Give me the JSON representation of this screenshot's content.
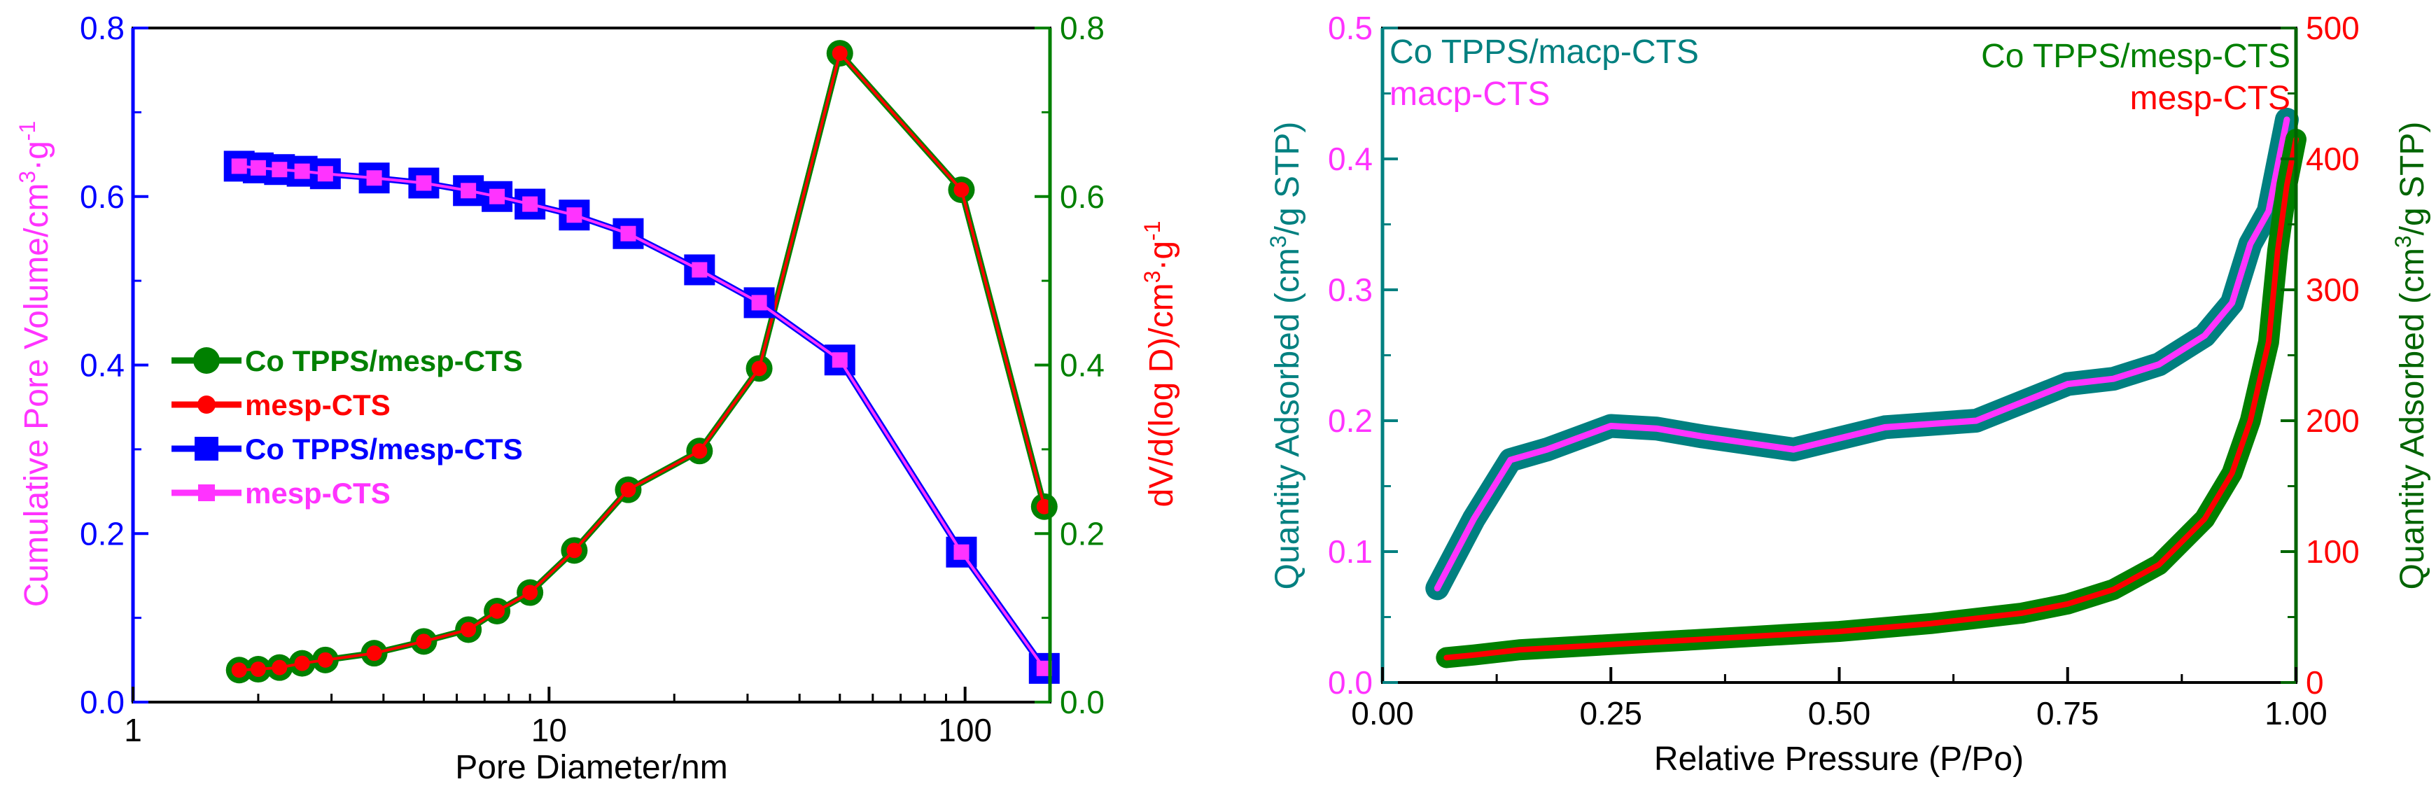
{
  "colors": {
    "green": "#008000",
    "red": "#ff0000",
    "blue": "#0000ff",
    "magenta": "#ff33ff",
    "teal": "#008080",
    "dark_green": "#006400",
    "black": "#000000"
  },
  "chart_data": [
    {
      "type": "line",
      "panel": "left",
      "xlabel": "Pore Diameter/nm",
      "x_scale": "log",
      "xlim": [
        1,
        160
      ],
      "x_ticks": [
        {
          "v": 1,
          "label": "1"
        },
        {
          "v": 10,
          "label": "10"
        },
        {
          "v": 100,
          "label": "100"
        }
      ],
      "ylabel_left": "Cumulative Pore Volume/cm3·g-1",
      "ylabel_left_parts": {
        "a": "Cumulative Pore Volume/cm",
        "sup1": "3",
        "b": "·g",
        "sup2": "-1"
      },
      "ylim_left": [
        0,
        0.8
      ],
      "y_ticks_left": [
        "0.0",
        "0.2",
        "0.4",
        "0.6",
        "0.8"
      ],
      "ylabel_right": "dV/d(log D)/cm3·g-1",
      "ylabel_right_parts": {
        "a": "dV/d(log D)/cm",
        "sup1": "3",
        "b": "·g",
        "sup2": "-1"
      },
      "ylim_right": [
        0,
        0.8
      ],
      "y_ticks_right": [
        "0.0",
        "0.2",
        "0.4",
        "0.6",
        "0.8"
      ],
      "legend_position": "center-left",
      "legend": [
        {
          "label": "Co TPPS/mesp-CTS",
          "color": "#008000",
          "marker": "circle"
        },
        {
          "label": "mesp-CTS",
          "color": "#ff0000",
          "marker": "circle"
        },
        {
          "label": "Co TPPS/mesp-CTS",
          "color": "#0000ff",
          "marker": "square"
        },
        {
          "label": "mesp-CTS",
          "color": "#ff33ff",
          "marker": "square"
        }
      ],
      "x": [
        1.8,
        2.0,
        2.25,
        2.55,
        2.9,
        3.8,
        5.0,
        6.4,
        7.5,
        9.0,
        11.5,
        15.5,
        23,
        32,
        50,
        98,
        155
      ],
      "series": [
        {
          "name": "Co TPPS/mesp-CTS (cumulative)",
          "axis": "left",
          "color": "#0000ff",
          "marker": "square",
          "values": [
            0.636,
            0.634,
            0.632,
            0.63,
            0.627,
            0.622,
            0.616,
            0.607,
            0.6,
            0.591,
            0.578,
            0.556,
            0.513,
            0.474,
            0.406,
            0.178,
            0.04
          ]
        },
        {
          "name": "mesp-CTS (cumulative)",
          "axis": "left",
          "color": "#ff33ff",
          "marker": "square",
          "values": [
            0.636,
            0.634,
            0.632,
            0.63,
            0.627,
            0.622,
            0.616,
            0.607,
            0.6,
            0.591,
            0.578,
            0.556,
            0.513,
            0.474,
            0.406,
            0.178,
            0.04
          ]
        },
        {
          "name": "Co TPPS/mesp-CTS (dV/dlogD)",
          "axis": "right",
          "color": "#008000",
          "marker": "circle",
          "values": [
            0.038,
            0.039,
            0.041,
            0.046,
            0.05,
            0.058,
            0.072,
            0.086,
            0.108,
            0.13,
            0.18,
            0.252,
            0.298,
            0.396,
            0.77,
            0.608,
            0.232
          ]
        },
        {
          "name": "mesp-CTS (dV/dlogD)",
          "axis": "right",
          "color": "#ff0000",
          "marker": "circle",
          "values": [
            0.038,
            0.039,
            0.041,
            0.046,
            0.05,
            0.058,
            0.072,
            0.086,
            0.108,
            0.13,
            0.18,
            0.252,
            0.298,
            0.396,
            0.77,
            0.608,
            0.232
          ]
        }
      ]
    },
    {
      "type": "line",
      "panel": "right",
      "xlabel": "Relative Pressure (P/Po)",
      "xlim": [
        0,
        1
      ],
      "x_ticks": [
        {
          "v": 0,
          "label": "0.00"
        },
        {
          "v": 0.25,
          "label": "0.25"
        },
        {
          "v": 0.5,
          "label": "0.50"
        },
        {
          "v": 0.75,
          "label": "0.75"
        },
        {
          "v": 1.0,
          "label": "1.00"
        }
      ],
      "ylabel_left": "Quantity Adsorbed (cm3/g STP)",
      "ylabel_left_parts": {
        "a": "Quantity Adsorbed (cm",
        "sup1": "3",
        "b": "/g STP)"
      },
      "ylim_left": [
        0,
        0.5
      ],
      "y_ticks_left": [
        {
          "v": 0,
          "label": "0.0"
        },
        {
          "v": 0.1,
          "label": "0.1"
        },
        {
          "v": 0.2,
          "label": "0.2"
        },
        {
          "v": 0.3,
          "label": "0.3"
        },
        {
          "v": 0.4,
          "label": "0.4"
        },
        {
          "v": 0.5,
          "label": "0.5"
        }
      ],
      "ylabel_right": "Quantity Adsorbed (cm3/g STP)",
      "ylabel_right_parts": {
        "a": "Quantity Adsorbed (cm",
        "sup1": "3",
        "b": "/g STP)"
      },
      "ylim_right": [
        0,
        500
      ],
      "y_ticks_right": [
        {
          "v": 0,
          "label": "0"
        },
        {
          "v": 100,
          "label": "100"
        },
        {
          "v": 200,
          "label": "200"
        },
        {
          "v": 300,
          "label": "300"
        },
        {
          "v": 400,
          "label": "400"
        },
        {
          "v": 500,
          "label": "500"
        }
      ],
      "legend": [
        {
          "label": "Co TPPS/macp-CTS",
          "color": "#008080",
          "position": "top-left"
        },
        {
          "label": "macp-CTS",
          "color": "#ff33ff",
          "position": "top-left"
        },
        {
          "label": "Co TPPS/mesp-CTS",
          "color": "#008000",
          "position": "top-right"
        },
        {
          "label": "mesp-CTS",
          "color": "#ff0000",
          "position": "top-right"
        }
      ],
      "series": [
        {
          "name": "Co TPPS/macp-CTS",
          "axis": "left",
          "color": "#008080",
          "x": [
            0.06,
            0.1,
            0.14,
            0.18,
            0.25,
            0.3,
            0.35,
            0.45,
            0.55,
            0.65,
            0.75,
            0.8,
            0.85,
            0.9,
            0.93,
            0.95,
            0.97,
            0.99
          ],
          "values": [
            0.072,
            0.125,
            0.17,
            0.178,
            0.196,
            0.194,
            0.188,
            0.178,
            0.195,
            0.2,
            0.228,
            0.232,
            0.243,
            0.265,
            0.29,
            0.335,
            0.36,
            0.43
          ]
        },
        {
          "name": "macp-CTS",
          "axis": "left",
          "color": "#ff33ff",
          "x": [
            0.06,
            0.1,
            0.14,
            0.18,
            0.25,
            0.3,
            0.35,
            0.45,
            0.55,
            0.65,
            0.75,
            0.8,
            0.85,
            0.9,
            0.93,
            0.95,
            0.97,
            0.99
          ],
          "values": [
            0.072,
            0.125,
            0.17,
            0.178,
            0.196,
            0.194,
            0.188,
            0.178,
            0.195,
            0.2,
            0.228,
            0.232,
            0.243,
            0.265,
            0.29,
            0.335,
            0.36,
            0.43
          ]
        },
        {
          "name": "Co TPPS/mesp-CTS",
          "axis": "right",
          "color": "#008000",
          "x": [
            0.07,
            0.1,
            0.15,
            0.2,
            0.3,
            0.4,
            0.5,
            0.6,
            0.7,
            0.75,
            0.8,
            0.85,
            0.9,
            0.93,
            0.95,
            0.97,
            0.98,
            0.99,
            1.0
          ],
          "values": [
            19,
            21,
            25,
            27,
            31,
            35,
            39,
            45,
            53,
            60,
            71,
            90,
            125,
            160,
            200,
            260,
            330,
            380,
            415
          ]
        },
        {
          "name": "mesp-CTS",
          "axis": "right",
          "color": "#ff0000",
          "x": [
            0.07,
            0.1,
            0.15,
            0.2,
            0.3,
            0.4,
            0.5,
            0.6,
            0.7,
            0.75,
            0.8,
            0.85,
            0.9,
            0.93,
            0.95,
            0.97,
            0.98,
            0.99,
            1.0
          ],
          "values": [
            19,
            21,
            25,
            27,
            31,
            35,
            39,
            45,
            53,
            60,
            71,
            90,
            125,
            160,
            200,
            260,
            330,
            380,
            415
          ]
        }
      ]
    }
  ]
}
